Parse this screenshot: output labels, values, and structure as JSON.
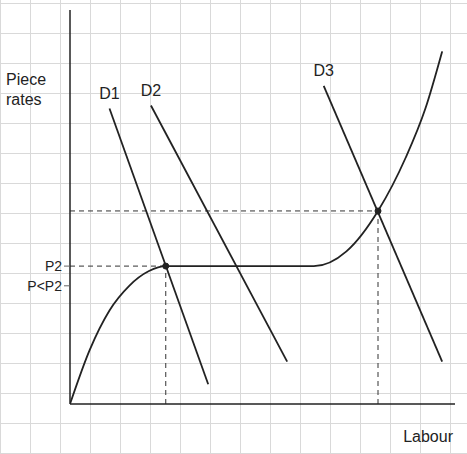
{
  "chart_data": {
    "type": "line",
    "x_label": "Labour",
    "y_label": "Piece rates",
    "xlim": [
      0,
      39
    ],
    "ylim": [
      0,
      40
    ],
    "yticks": [
      {
        "value": 14,
        "label": "P2"
      },
      {
        "value": 12,
        "label": "P<P2"
      }
    ],
    "tick_labels": "y",
    "series": [
      {
        "x": [
          0,
          2,
          4,
          6,
          8,
          9.7,
          14,
          20,
          24.7,
          28,
          31.2,
          34,
          36,
          37.7
        ],
        "values": [
          0,
          5.5,
          9.5,
          12,
          13.5,
          14,
          14,
          14,
          14,
          15.5,
          19.6,
          25,
          30,
          35.8
        ],
        "color": "#222222",
        "line_style": "solid"
      },
      {
        "name": "D1",
        "x": [
          4,
          14
        ],
        "values": [
          30,
          2
        ],
        "color": "#222222",
        "line_style": "solid"
      },
      {
        "name": "D2",
        "x": [
          8.2,
          22
        ],
        "values": [
          30.3,
          4.3
        ],
        "color": "#222222",
        "line_style": "solid"
      },
      {
        "name": "D3",
        "x": [
          25.7,
          37.7
        ],
        "values": [
          32.3,
          4.3
        ],
        "color": "#222222",
        "line_style": "solid"
      }
    ],
    "equilibria": [
      {
        "x": 9.7,
        "y": 14
      },
      {
        "x": 31.2,
        "y": 19.6
      }
    ]
  }
}
